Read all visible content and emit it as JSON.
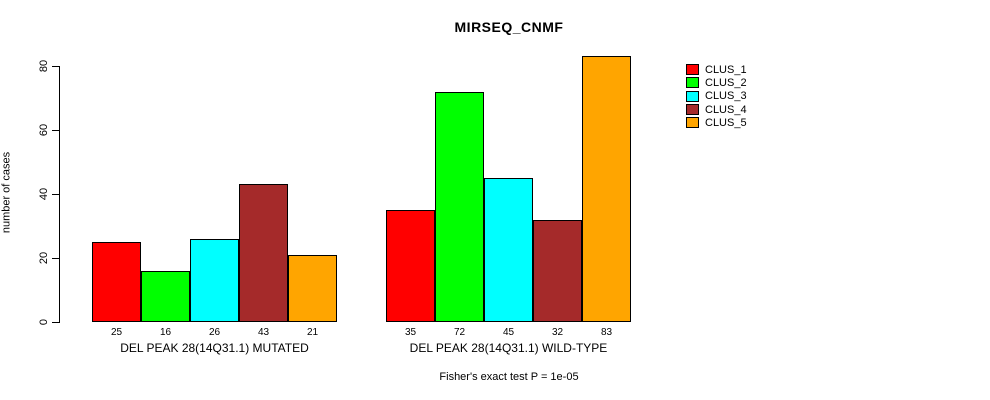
{
  "chart_data": {
    "type": "bar",
    "title": "MIRSEQ_CNMF",
    "ylabel": "number of cases",
    "xlabel": "",
    "ylim": [
      0,
      85
    ],
    "yticks": [
      0,
      20,
      40,
      60,
      80
    ],
    "grid": false,
    "legend_position": "right",
    "legend": [
      {
        "name": "CLUS_1",
        "color": "#FF0000"
      },
      {
        "name": "CLUS_2",
        "color": "#00FF00"
      },
      {
        "name": "CLUS_3",
        "color": "#00FFFF"
      },
      {
        "name": "CLUS_4",
        "color": "#A52A2A"
      },
      {
        "name": "CLUS_5",
        "color": "#FFA500"
      }
    ],
    "groups": [
      {
        "label": "DEL PEAK 28(14Q31.1) MUTATED",
        "values": [
          25,
          16,
          26,
          43,
          21
        ]
      },
      {
        "label": "DEL PEAK 28(14Q31.1) WILD-TYPE",
        "values": [
          35,
          72,
          45,
          32,
          83
        ]
      }
    ],
    "annotation": "Fisher's exact test P = 1e-05"
  }
}
